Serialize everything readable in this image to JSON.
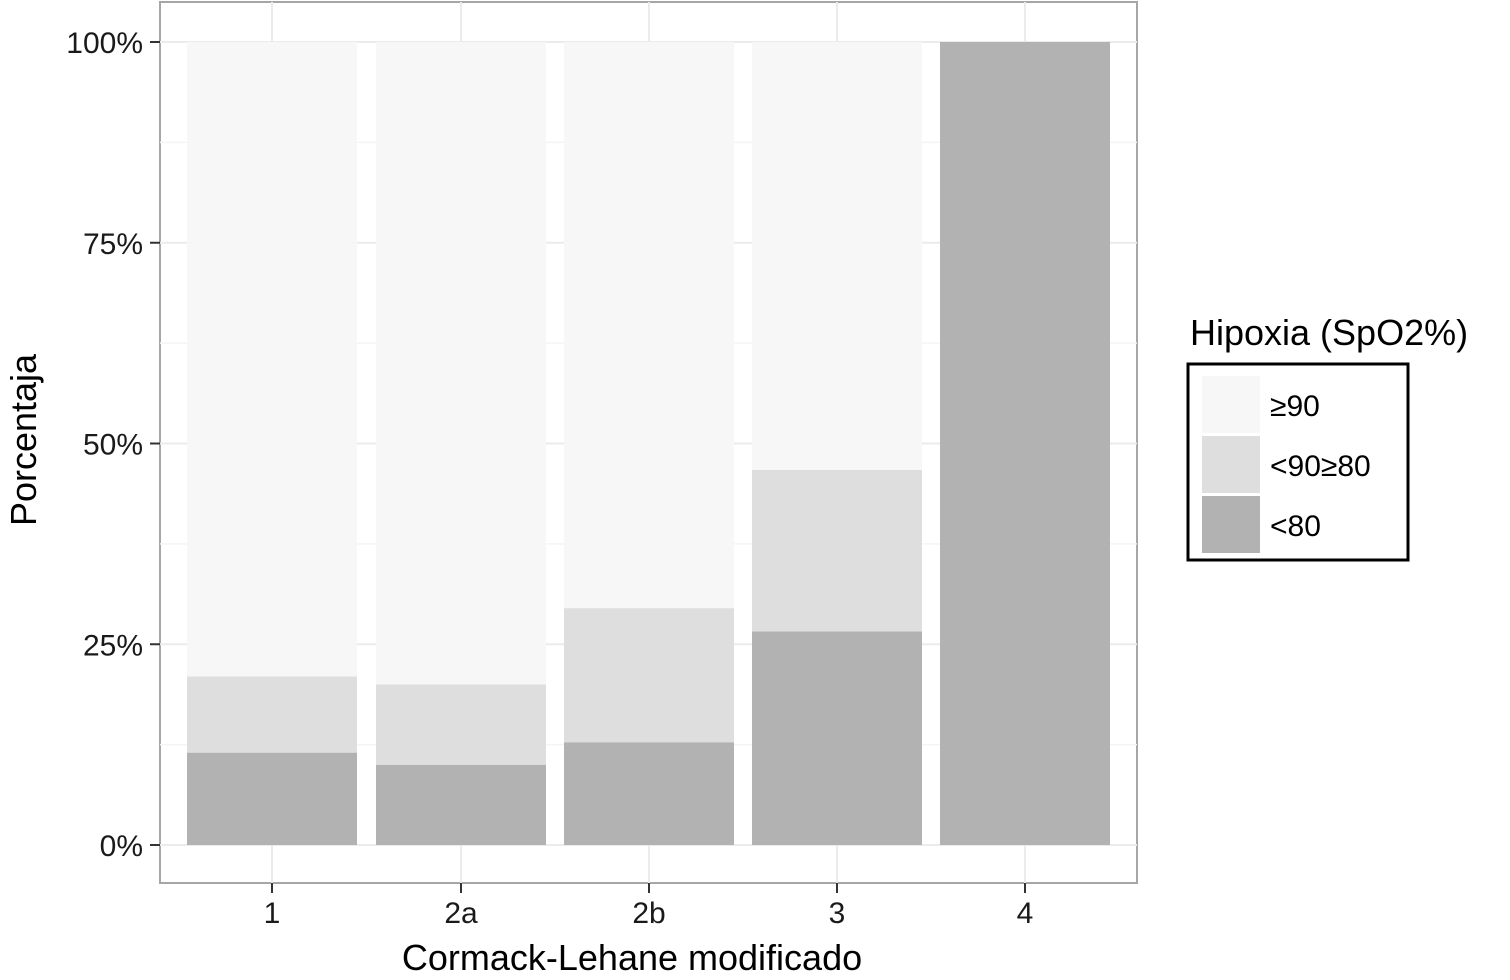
{
  "chart_data": {
    "type": "bar",
    "stacked": "percent",
    "title": "",
    "xlabel": "Cormack-Lehane modificado",
    "ylabel": "Porcentaja",
    "categories": [
      "1",
      "2a",
      "2b",
      "3",
      "4"
    ],
    "ylim": [
      0,
      100
    ],
    "yticks": [
      "0%",
      "25%",
      "50%",
      "75%",
      "100%"
    ],
    "ytick_values": [
      0,
      25,
      50,
      75,
      100
    ],
    "grid": true,
    "legend": {
      "title": "Hipoxia (SpO2%)",
      "placement": "right"
    },
    "series": [
      {
        "name": "<80",
        "color": "#b2b2b2",
        "values": [
          11.5,
          10,
          12.8,
          26.6,
          100
        ]
      },
      {
        "name": "<90≥80",
        "color": "#dedede",
        "values": [
          9.5,
          10,
          16.7,
          20.1,
          0
        ]
      },
      {
        "name": "≥90",
        "color": "#f7f7f7",
        "values": [
          79,
          80,
          70.5,
          53.3,
          0
        ]
      }
    ],
    "legend_order": [
      "≥90",
      "<90≥80",
      "<80"
    ]
  }
}
